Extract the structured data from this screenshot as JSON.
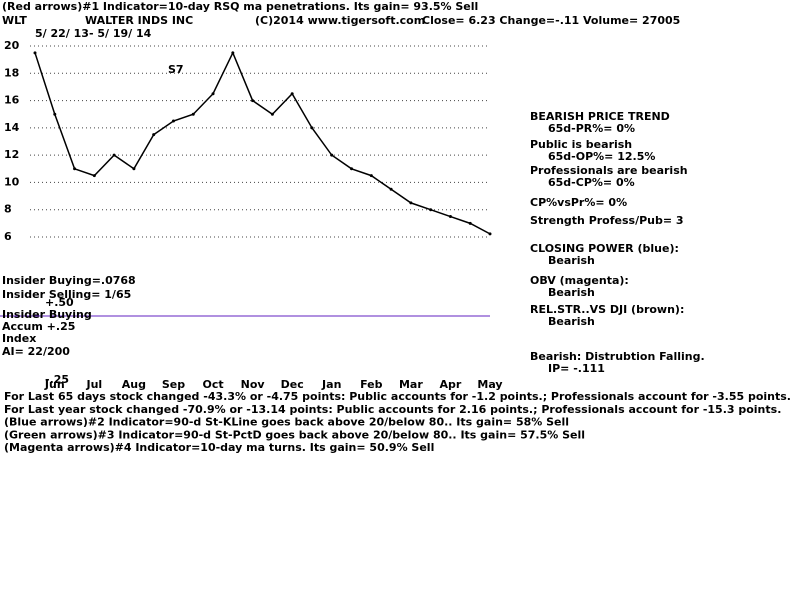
{
  "chart_data": {
    "type": "line",
    "categories": [
      null,
      "Jun",
      null,
      "Jul",
      null,
      "Aug",
      null,
      "Sep",
      null,
      "Oct",
      null,
      "Nov",
      null,
      "Dec",
      null,
      "Jan",
      null,
      "Feb",
      null,
      "Mar",
      null,
      "Apr",
      null,
      "May"
    ],
    "values": [
      19.5,
      15,
      11,
      10.5,
      12,
      11,
      13.5,
      14.5,
      15,
      16.5,
      19.5,
      16,
      15,
      16.5,
      14,
      12,
      11,
      10.5,
      9.5,
      8.5,
      8,
      7.5,
      7,
      6.23
    ],
    "color": "#000000",
    "ylim": [
      6,
      20
    ],
    "yticks": [
      6,
      8,
      10,
      12,
      14,
      16,
      18,
      20
    ],
    "grid": true
  },
  "header": {
    "indicator": "(Red arrows)#1 Indicator=10-day RSQ ma penetrations. Its gain= 93.5% Sell",
    "symbol": "WLT",
    "company": "WALTER INDS INC",
    "copyright": "(C)2014 www.tigersoft.com",
    "quote": "Close=  6.23  Change=-.11 Volume= 27005",
    "dates": "5/ 22/ 13- 5/ 19/ 14",
    "signal": "S7"
  },
  "right_notes": [
    "BEARISH PRICE TREND",
    "65d-PR%= 0%",
    "Public is bearish",
    "65d-OP%= 12.5%",
    "Professionals are bearish",
    "65d-CP%= 0%",
    "CP%vsPr%=  0%",
    "Strength Profess/Pub= 3",
    "CLOSING POWER (blue):",
    "Bearish",
    "OBV (magenta):",
    "Bearish",
    "REL.STR..VS DJI (brown):",
    "Bearish",
    "Bearish: Distrubtion Falling.",
    "IP= -.111"
  ],
  "left_notes": [
    "Insider Buying=.0768",
    "Insider Selling= 1/65",
    "+.50",
    "Insider Buying",
    "Accum  +.25",
    "Index",
    "AI= 22/200",
    "-.25"
  ],
  "footer": [
    "For Last 65 days stock changed -43.3% or -4.75 points:  Public accounts for -1.2 points.;  Professionals account for -3.55 points.",
    "For Last year stock changed -70.9% or -13.14 points:  Public accounts for  2.16 points.;  Professionals account for -15.3 points.",
    "(Blue arrows)#2 Indicator=90-d St-KLine goes back above 20/below 80.. Its gain= 58% Sell",
    "(Green arrows)#3 Indicator=90-d St-PctD goes back above 20/below 80.. Its gain= 57.5% Sell",
    "(Magenta arrows)#4 Indicator=10-day ma turns. Its gain= 50.9% Sell"
  ]
}
